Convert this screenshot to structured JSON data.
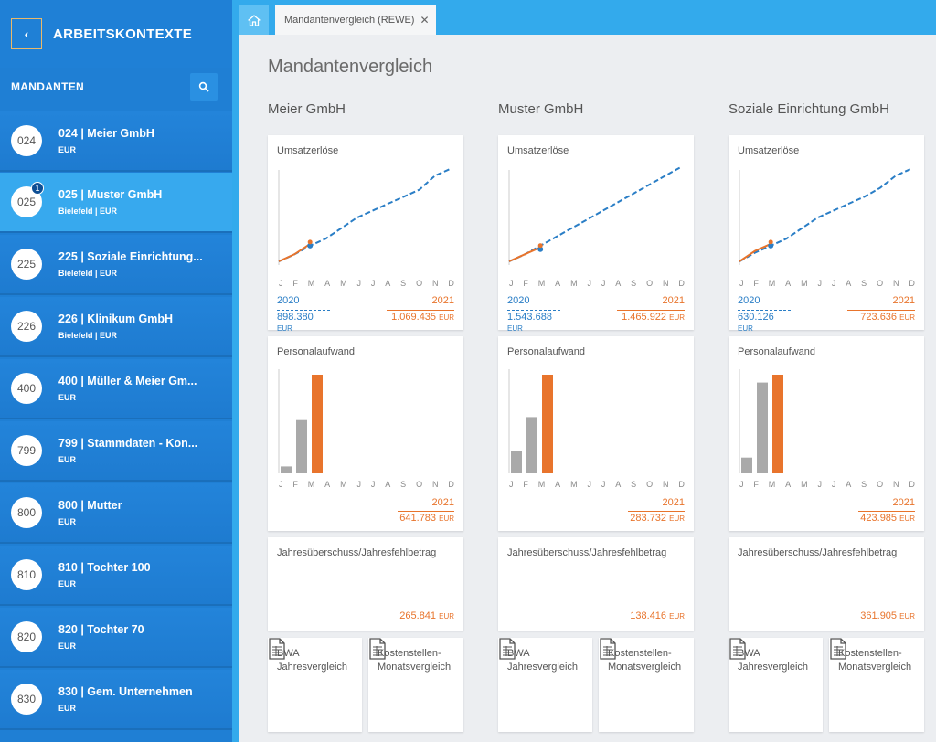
{
  "sidebar": {
    "back_icon": "chevron-left-icon",
    "title": "ARBEITSKONTEXTE",
    "section_label": "MANDANTEN",
    "clients": [
      {
        "num": "024",
        "name": "024 | Meier GmbH",
        "sub": "EUR",
        "active": false,
        "notif": ""
      },
      {
        "num": "025",
        "name": "025 | Muster GmbH",
        "sub": "Bielefeld | EUR",
        "active": true,
        "notif": "1"
      },
      {
        "num": "225",
        "name": "225 | Soziale Einrichtung...",
        "sub": "Bielefeld | EUR",
        "active": false,
        "notif": ""
      },
      {
        "num": "226",
        "name": "226 | Klinikum GmbH",
        "sub": "Bielefeld | EUR",
        "active": false,
        "notif": ""
      },
      {
        "num": "400",
        "name": "400 | Müller & Meier Gm...",
        "sub": "EUR",
        "active": false,
        "notif": ""
      },
      {
        "num": "799",
        "name": "799 | Stammdaten - Kon...",
        "sub": "EUR",
        "active": false,
        "notif": ""
      },
      {
        "num": "800",
        "name": "800 | Mutter",
        "sub": "EUR",
        "active": false,
        "notif": ""
      },
      {
        "num": "810",
        "name": "810 | Tochter 100",
        "sub": "EUR",
        "active": false,
        "notif": ""
      },
      {
        "num": "820",
        "name": "820 | Tochter 70",
        "sub": "EUR",
        "active": false,
        "notif": ""
      },
      {
        "num": "830",
        "name": "830 | Gem. Unternehmen",
        "sub": "EUR",
        "active": false,
        "notif": ""
      }
    ]
  },
  "tabs": {
    "home_icon": "home-icon",
    "active_tab": "Mandantenvergleich (REWE)",
    "close": "✕"
  },
  "main": {
    "title": "Mandantenvergleich",
    "months": [
      "J",
      "F",
      "M",
      "A",
      "M",
      "J",
      "J",
      "A",
      "S",
      "O",
      "N",
      "D"
    ],
    "columns": [
      {
        "company": "Meier GmbH",
        "umsatz": {
          "label": "Umsatzerlöse",
          "year1": "2020",
          "value1": "898.380",
          "year2": "2021",
          "value2": "1.069.435",
          "unit": "EUR"
        },
        "personal": {
          "label": "Personalaufwand",
          "year": "2021",
          "value": "641.783",
          "unit": "EUR",
          "bars": [
            0.07,
            0.54,
            1.0
          ]
        },
        "jahres": {
          "label": "Jahresüberschuss/Jahresfehlbetrag",
          "value": "265.841",
          "unit": "EUR"
        },
        "bwa": "BWA Jahresvergleich",
        "kst": "Kostenstellen-Monatsvergleich"
      },
      {
        "company": "Muster GmbH",
        "umsatz": {
          "label": "Umsatzerlöse",
          "year1": "2020",
          "value1": "1.543.688",
          "year2": "2021",
          "value2": "1.465.922",
          "unit": "EUR"
        },
        "personal": {
          "label": "Personalaufwand",
          "year": "2021",
          "value": "283.732",
          "unit": "EUR",
          "bars": [
            0.23,
            0.57,
            1.0
          ]
        },
        "jahres": {
          "label": "Jahresüberschuss/Jahresfehlbetrag",
          "value": "138.416",
          "unit": "EUR"
        },
        "bwa": "BWA Jahresvergleich",
        "kst": "Kostenstellen-Monatsvergleich"
      },
      {
        "company": "Soziale Einrichtung GmbH",
        "umsatz": {
          "label": "Umsatzerlöse",
          "year1": "2020",
          "value1": "630.126",
          "year2": "2021",
          "value2": "723.636",
          "unit": "EUR"
        },
        "personal": {
          "label": "Personalaufwand",
          "year": "2021",
          "value": "423.985",
          "unit": "EUR",
          "bars": [
            0.16,
            0.92,
            1.0
          ]
        },
        "jahres": {
          "label": "Jahresüberschuss/Jahresfehlbetrag",
          "value": "361.905",
          "unit": "EUR"
        },
        "bwa": "BWA Jahresvergleich",
        "kst": "Kostenstellen-Monatsvergleich"
      }
    ]
  },
  "colors": {
    "blue": "#1f7fd4",
    "orange": "#e8742c",
    "line_blue": "#2a7ec6",
    "bar_gray": "#a9a9a9"
  }
}
